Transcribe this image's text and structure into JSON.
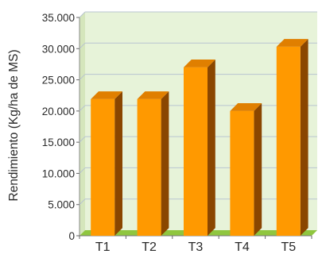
{
  "chart_data": {
    "type": "bar",
    "title": "",
    "xlabel": "",
    "ylabel": "Rendimiento (Kg/ha de MS)",
    "categories": [
      "T1",
      "T2",
      "T3",
      "T4",
      "T5"
    ],
    "values": [
      21900,
      21900,
      27000,
      20000,
      30300
    ],
    "ylim": [
      0,
      35000
    ],
    "yticks": [
      0,
      5000,
      10000,
      15000,
      20000,
      25000,
      30000,
      35000
    ],
    "ytick_labels": [
      "0",
      "5.000",
      "10.000",
      "15.000",
      "20.000",
      "25.000",
      "30.000",
      "35.000"
    ],
    "grid": true,
    "legend": "none",
    "style": "3d",
    "colors": {
      "bar_front": "#ff9900",
      "bar_top": "#e07f00",
      "bar_side": "#8a4600",
      "plot_back": "#e7f3d9",
      "plot_side": "#d5e6bc",
      "floor": "#8fc63f",
      "gridline": "#b9c4d1"
    }
  }
}
